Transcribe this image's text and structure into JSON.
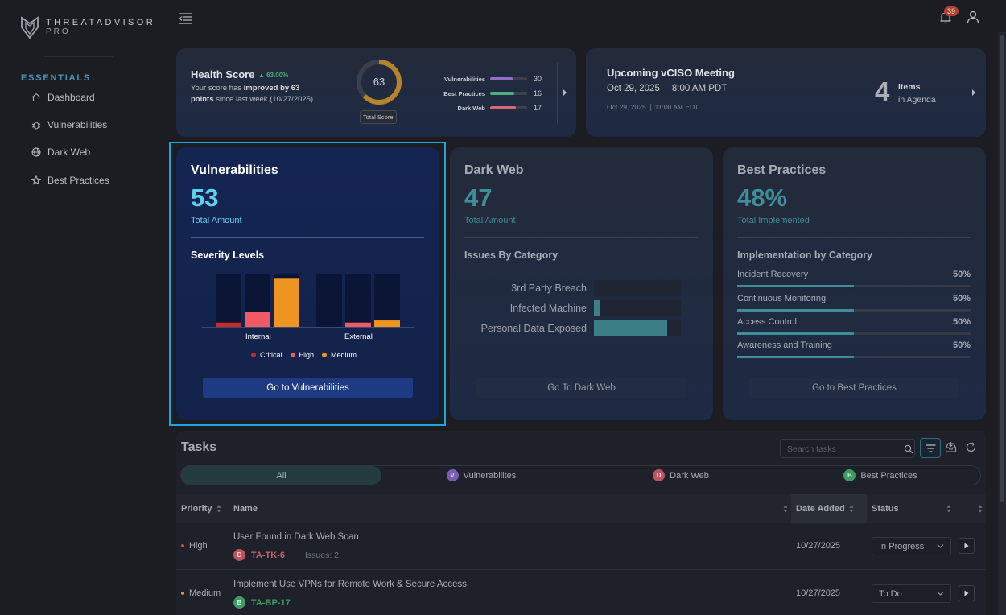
{
  "brand": {
    "line1": "THREATADVISOR",
    "line2": "PRO"
  },
  "sidebar": {
    "section": "ESSENTIALS",
    "items": [
      {
        "label": "Dashboard",
        "icon": "home-icon"
      },
      {
        "label": "Vulnerabilities",
        "icon": "bug-icon"
      },
      {
        "label": "Dark Web",
        "icon": "globe-icon"
      },
      {
        "label": "Best Practices",
        "icon": "star-icon"
      }
    ]
  },
  "header": {
    "notification_count": "39"
  },
  "health": {
    "title": "Health Score",
    "delta": "63.00%",
    "text_prefix": "Your score has ",
    "text_bold": "improved by 63 points",
    "text_suffix": " since last week (10/27/2025)",
    "score": "63",
    "score_fraction": 0.63,
    "score_label": "Total Score",
    "breakdown": [
      {
        "name": "Vulnerabilities",
        "value": "30",
        "color": "#8f6fc9",
        "fill": 0.6
      },
      {
        "name": "Best Practices",
        "value": "16",
        "color": "#4caf7d",
        "fill": 0.65
      },
      {
        "name": "Dark Web",
        "value": "17",
        "color": "#d9667a",
        "fill": 0.7
      }
    ]
  },
  "meeting": {
    "title": "Upcoming vCISO Meeting",
    "date": "Oct 29, 2025",
    "time": "8:00 AM PDT",
    "alt_date": "Oct 29, 2025",
    "alt_time": "11:00 AM EDT",
    "count": "4",
    "items_label": "Items",
    "agenda_label": "in Agenda"
  },
  "vulnerabilities": {
    "title": "Vulnerabilities",
    "total": "53",
    "total_label": "Total Amount",
    "section": "Severity Levels",
    "groups": [
      {
        "name": "Internal",
        "critical": 2,
        "high": 7,
        "medium": 23
      },
      {
        "name": "External",
        "critical": 0,
        "high": 2,
        "medium": 3
      }
    ],
    "max": 25,
    "legend": [
      {
        "name": "Critical",
        "color": "#c42b2b"
      },
      {
        "name": "High",
        "color": "#f05a64"
      },
      {
        "name": "Medium",
        "color": "#ee9421"
      }
    ],
    "button": "Go to Vulnerabilities"
  },
  "darkweb": {
    "title": "Dark Web",
    "total": "47",
    "total_label": "Total Amount",
    "section": "Issues By Category",
    "categories": [
      {
        "name": "3rd Party Breach",
        "value": 0
      },
      {
        "name": "Infected Machine",
        "value": 4
      },
      {
        "name": "Personal Data Exposed",
        "value": 43
      }
    ],
    "max": 47,
    "button": "Go To Dark Web"
  },
  "bestpractices": {
    "title": "Best Practices",
    "total": "48%",
    "total_label": "Total Implemented",
    "section": "Implementation by Category",
    "categories": [
      {
        "name": "Incident Recovery",
        "percent": "50%",
        "fill": 0.5
      },
      {
        "name": "Continuous Monitoring",
        "percent": "50%",
        "fill": 0.5
      },
      {
        "name": "Access Control",
        "percent": "50%",
        "fill": 0.5
      },
      {
        "name": "Awareness and Training",
        "percent": "50%",
        "fill": 0.5
      }
    ],
    "button": "Go to Best Practices"
  },
  "tasks": {
    "title": "Tasks",
    "search_placeholder": "Search tasks",
    "tabs": [
      {
        "label": "All",
        "badge": ""
      },
      {
        "label": "Vulnerabilites",
        "badge": "V"
      },
      {
        "label": "Dark Web",
        "badge": "D"
      },
      {
        "label": "Best Practices",
        "badge": "B"
      }
    ],
    "columns": {
      "priority": "Priority",
      "name": "Name",
      "date": "Date Added",
      "status": "Status"
    },
    "rows": [
      {
        "priority": "High",
        "priority_color": "#d24a4a",
        "name": "User Found in Dark Web Scan",
        "badge": "D",
        "badge_color": "#d9667a",
        "id": "TA-TK-6",
        "id_color": "#c9616f",
        "issues": "Issues: 2",
        "date": "10/27/2025",
        "status": "In Progress"
      },
      {
        "priority": "Medium",
        "priority_color": "#e39a2c",
        "name": "Implement Use VPNs for Remote Work & Secure Access",
        "badge": "B",
        "badge_color": "#3f9a63",
        "id": "TA-BP-17",
        "id_color": "#3f9a63",
        "issues": "",
        "date": "10/27/2025",
        "status": "To Do"
      }
    ]
  }
}
